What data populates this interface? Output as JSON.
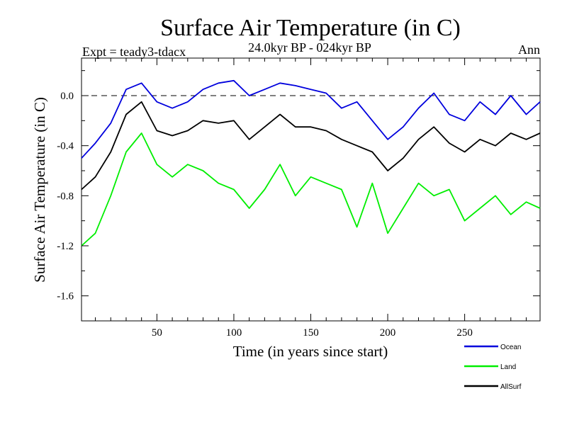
{
  "chart_data": {
    "type": "line",
    "title": "Surface Air Temperature (in C)",
    "subtitle": "24.0kyr BP - 024kyr BP",
    "left_label": "Expt = teady3-tdacx",
    "right_label": "Ann",
    "xlabel": "Time (in years since start)",
    "ylabel": "Surface Air Temperature (in C)",
    "xlim": [
      1,
      299
    ],
    "ylim": [
      -1.8,
      0.3
    ],
    "x_ticks": [
      50,
      100,
      150,
      200,
      250
    ],
    "x_tick_labels": [
      "50",
      "100",
      "150",
      "200",
      "250"
    ],
    "y_ticks": [
      0.0,
      -0.4,
      -0.8,
      -1.2,
      -1.6
    ],
    "y_tick_labels": [
      "0.0",
      "-0.4",
      "-0.8",
      "-1.2",
      "-1.6"
    ],
    "reference_line": 0.0,
    "legend_position": "bottom-right, below plot",
    "x": [
      1,
      10,
      20,
      30,
      40,
      50,
      60,
      70,
      80,
      90,
      100,
      110,
      120,
      130,
      140,
      150,
      160,
      170,
      180,
      190,
      200,
      210,
      220,
      230,
      240,
      250,
      260,
      270,
      280,
      290,
      299
    ],
    "series": [
      {
        "name": "Ocean",
        "color": "#0000dd",
        "values": [
          -0.5,
          -0.38,
          -0.22,
          0.05,
          0.1,
          -0.05,
          -0.1,
          -0.05,
          0.05,
          0.1,
          0.12,
          0.0,
          0.05,
          0.1,
          0.08,
          0.05,
          0.02,
          -0.1,
          -0.05,
          -0.2,
          -0.35,
          -0.25,
          -0.1,
          0.02,
          -0.15,
          -0.2,
          -0.05,
          -0.15,
          0.0,
          -0.15,
          -0.05
        ]
      },
      {
        "name": "Land",
        "color": "#00ee00",
        "values": [
          -1.2,
          -1.1,
          -0.8,
          -0.45,
          -0.3,
          -0.55,
          -0.65,
          -0.55,
          -0.6,
          -0.7,
          -0.75,
          -0.9,
          -0.75,
          -0.55,
          -0.8,
          -0.65,
          -0.7,
          -0.75,
          -1.05,
          -0.7,
          -1.1,
          -0.9,
          -0.7,
          -0.8,
          -0.75,
          -1.0,
          -0.9,
          -0.8,
          -0.95,
          -0.85,
          -0.9
        ]
      },
      {
        "name": "AllSurf",
        "color": "#000000",
        "values": [
          -0.75,
          -0.65,
          -0.45,
          -0.15,
          -0.05,
          -0.28,
          -0.32,
          -0.28,
          -0.2,
          -0.22,
          -0.2,
          -0.35,
          -0.25,
          -0.15,
          -0.25,
          -0.25,
          -0.28,
          -0.35,
          -0.4,
          -0.45,
          -0.6,
          -0.5,
          -0.35,
          -0.25,
          -0.38,
          -0.45,
          -0.35,
          -0.4,
          -0.3,
          -0.35,
          -0.3
        ]
      }
    ]
  }
}
